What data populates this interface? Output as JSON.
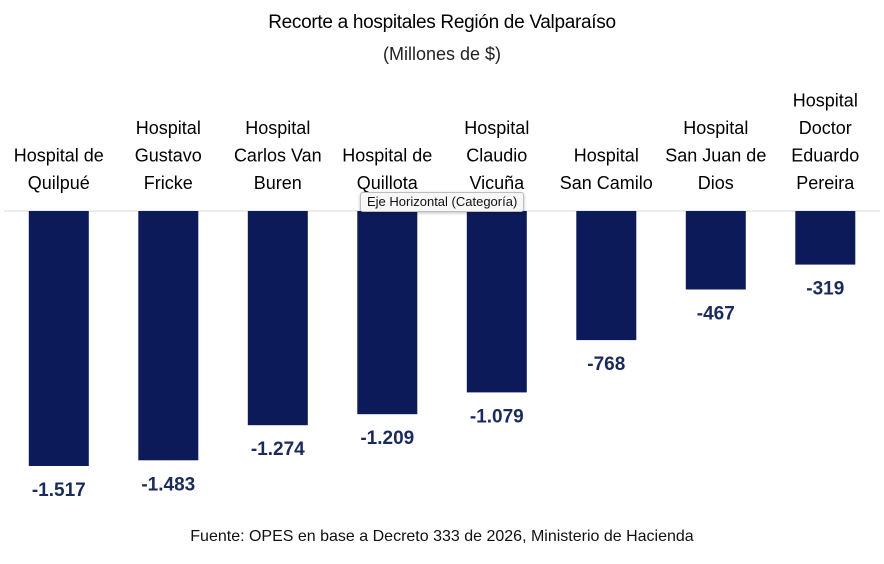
{
  "title": "Recorte a hospitales Región de Valparaíso",
  "subtitle": "(Millones de $)",
  "source": "Fuente: OPES en base a Decreto 333 de 2026, Ministerio de Hacienda",
  "tooltip": "Eje Horizontal (Categoría)",
  "colors": {
    "bar": "#0c1a5a",
    "value_label": "#1b2a5c",
    "axis": "#d9d9d9"
  },
  "chart_data": {
    "type": "bar",
    "title": "Recorte a hospitales Región de Valparaíso",
    "subtitle": "(Millones de $)",
    "categories": [
      [
        "Hospital de",
        "Quilpué"
      ],
      [
        "Hospital",
        "Gustavo",
        "Fricke"
      ],
      [
        "Hospital",
        "Carlos Van",
        "Buren"
      ],
      [
        "Hospital de",
        "Quillota"
      ],
      [
        "Hospital",
        "Claudio",
        "Vicuña"
      ],
      [
        "Hospital",
        "San Camilo"
      ],
      [
        "Hospital",
        "San Juan de",
        "Dios"
      ],
      [
        "Hospital",
        "Doctor",
        "Eduardo",
        "Pereira"
      ]
    ],
    "values": [
      -1517,
      -1483,
      -1274,
      -1209,
      -1079,
      -768,
      -467,
      -319
    ],
    "value_labels": [
      "-1.517",
      "-1.483",
      "-1.274",
      "-1.209",
      "-1.079",
      "-768",
      "-467",
      "-319"
    ],
    "ylim": [
      -1517,
      0
    ],
    "grid": false,
    "legend": "none"
  }
}
